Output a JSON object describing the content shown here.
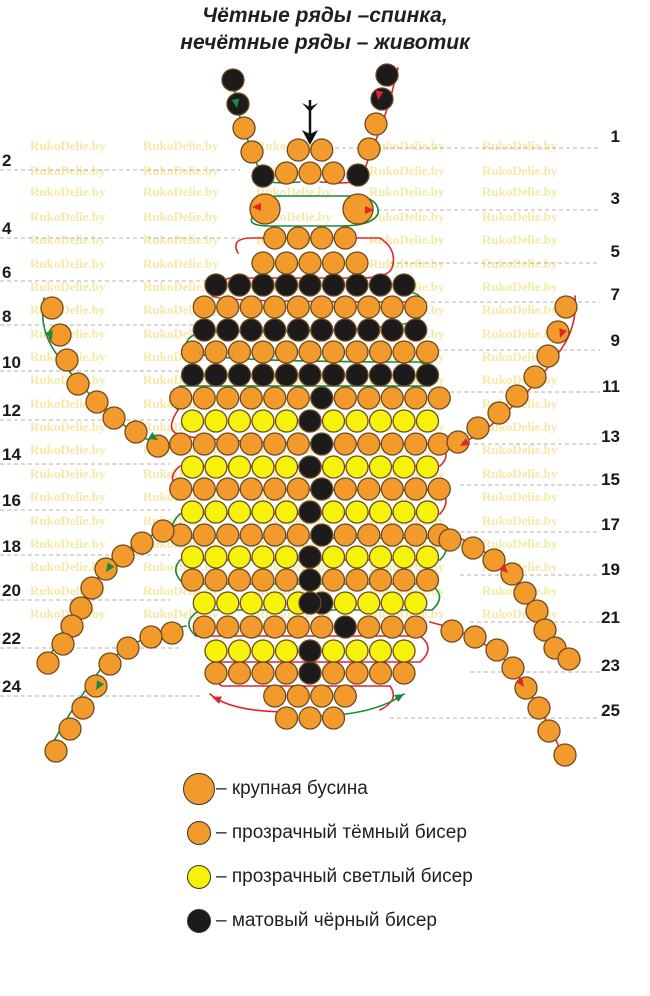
{
  "title": {
    "line1": "Чётные ряды –спинка,",
    "line2": "нечётные ряды – животик"
  },
  "watermark": "RukoDelie.by",
  "row_labels": {
    "left": [
      "2",
      "4",
      "6",
      "8",
      "10",
      "12",
      "14",
      "16",
      "18",
      "20",
      "22",
      "24"
    ],
    "right": [
      "1",
      "3",
      "5",
      "7",
      "9",
      "11",
      "13",
      "15",
      "17",
      "19",
      "21",
      "23",
      "25"
    ]
  },
  "colors": {
    "orange": "#f39a2c",
    "yellow": "#f6f20a",
    "black": "#1c1a1a",
    "outline": "#6b4a1e",
    "green_thread": "#1a8a3a",
    "red_thread": "#e0262a"
  },
  "legend": [
    {
      "kind": "large",
      "color": "#f39a2c",
      "text": "– крупная бусина"
    },
    {
      "kind": "seed",
      "color": "#f39a2c",
      "text": "– прозрачный тёмный бисер"
    },
    {
      "kind": "seed",
      "color": "#f6f20a",
      "text": "– прозрачный светлый бисер"
    },
    {
      "kind": "seed",
      "color": "#1c1a1a",
      "text": "– матовый чёрный бисер"
    }
  ]
}
